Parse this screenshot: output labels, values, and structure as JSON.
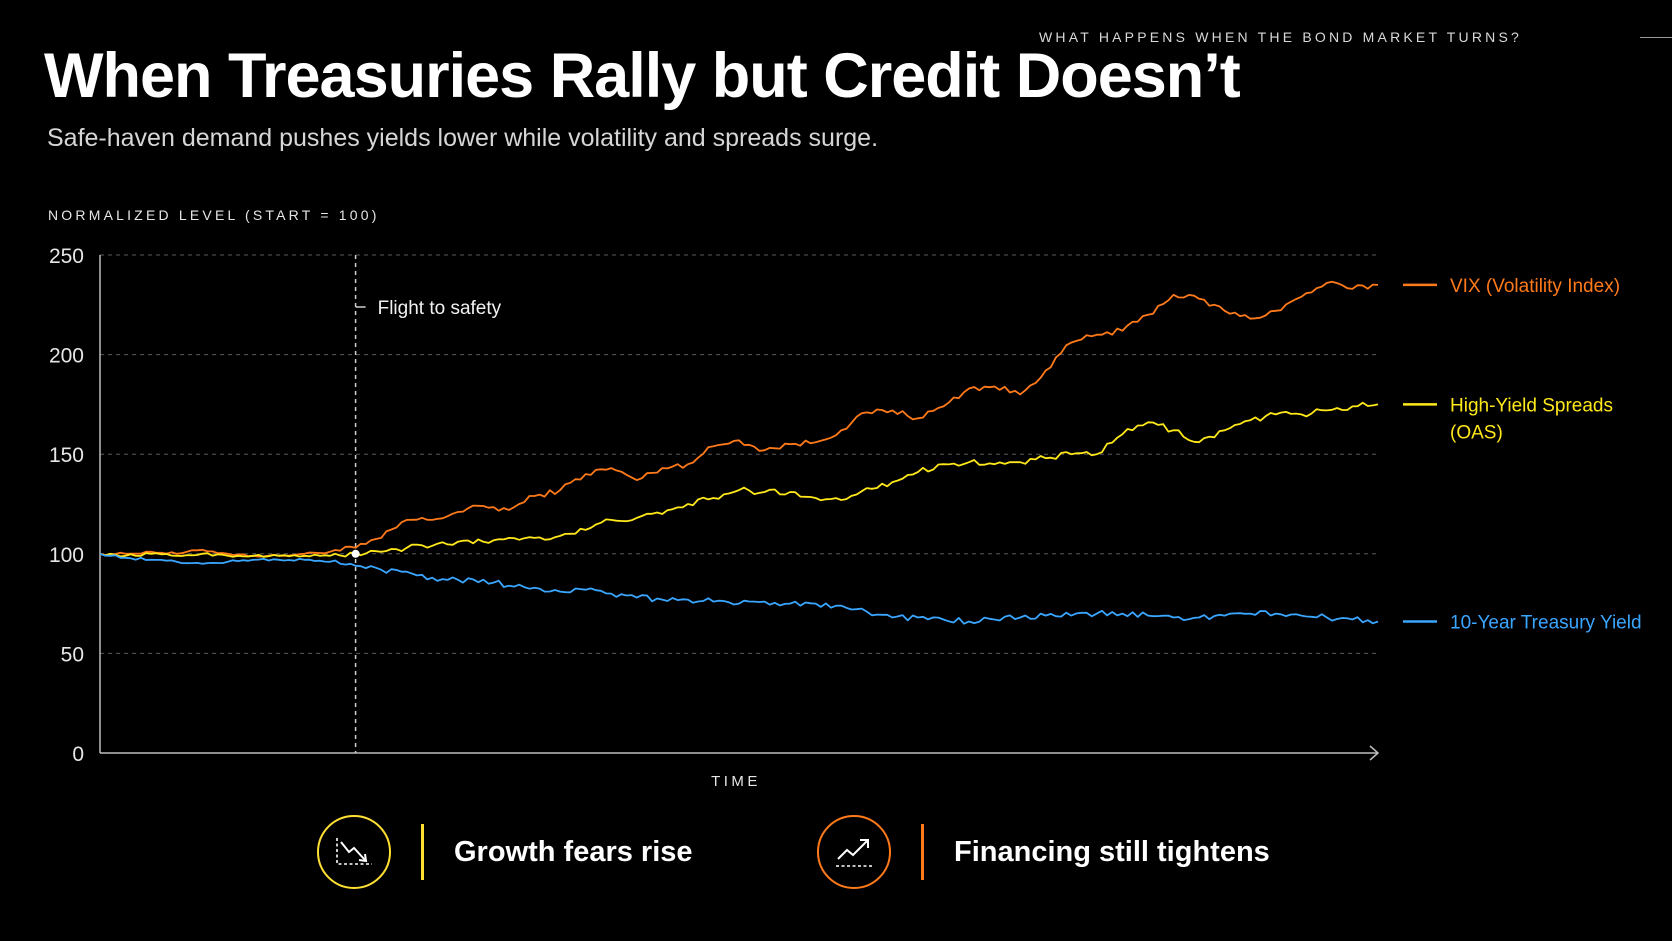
{
  "header": {
    "kicker": "WHAT HAPPENS WHEN THE BOND MARKET TURNS?",
    "title": "When Treasuries Rally but Credit Doesn’t",
    "subtitle": "Safe-haven demand pushes yields lower while volatility and spreads surge."
  },
  "chart_data": {
    "type": "line",
    "title": "When Treasuries Rally but Credit Doesn’t",
    "ylabel": "NORMALIZED LEVEL (START = 100)",
    "xlabel": "TIME",
    "ylim": [
      0,
      250
    ],
    "yticks": [
      0,
      50,
      100,
      150,
      200,
      250
    ],
    "grid": true,
    "legend": "right",
    "annotation": {
      "label": "Flight to safety",
      "x": 20,
      "y": 100
    },
    "x": [
      0,
      2,
      4,
      6,
      8,
      10,
      12,
      14,
      16,
      18,
      20,
      22,
      24,
      26,
      28,
      30,
      32,
      34,
      36,
      38,
      40,
      42,
      44,
      46,
      48,
      50,
      52,
      54,
      56,
      58,
      60,
      62,
      64,
      66,
      68,
      70,
      72,
      74,
      76,
      78,
      80,
      82,
      84,
      86,
      88,
      90,
      92,
      94,
      96,
      98,
      100
    ],
    "series": [
      {
        "name": "VIX (Volatility Index)",
        "color": "#ff7a1a",
        "values": [
          100,
          100,
          101,
          100,
          102,
          100,
          99,
          99,
          100,
          101,
          103,
          108,
          117,
          117,
          121,
          124,
          122,
          129,
          132,
          140,
          143,
          137,
          143,
          145,
          154,
          157,
          152,
          155,
          156,
          162,
          171,
          172,
          168,
          174,
          183,
          184,
          180,
          192,
          206,
          210,
          212,
          220,
          230,
          228,
          222,
          218,
          222,
          229,
          236,
          233,
          235
        ]
      },
      {
        "name": "High-Yield Spreads (OAS)",
        "color": "#ffe81a",
        "values": [
          100,
          99,
          100,
          99,
          100,
          99,
          99,
          99,
          99,
          99,
          100,
          101,
          103,
          104,
          106,
          106,
          108,
          108,
          109,
          112,
          117,
          118,
          120,
          125,
          128,
          132,
          131,
          131,
          128,
          127,
          133,
          136,
          141,
          145,
          146,
          145,
          146,
          148,
          150,
          150,
          160,
          166,
          162,
          156,
          162,
          167,
          170,
          170,
          172,
          174,
          175
        ]
      },
      {
        "name": "10-Year Treasury Yield",
        "color": "#3aa6ff",
        "values": [
          100,
          98,
          97,
          96,
          95,
          96,
          97,
          97,
          97,
          96,
          94,
          92,
          91,
          88,
          87,
          87,
          84,
          83,
          81,
          82,
          80,
          78,
          77,
          77,
          76,
          75,
          76,
          75,
          75,
          74,
          71,
          68,
          68,
          67,
          66,
          67,
          68,
          69,
          69,
          70,
          70,
          69,
          68,
          68,
          69,
          70,
          70,
          69,
          68,
          67,
          66
        ]
      }
    ]
  },
  "legend": [
    {
      "line1": "VIX (Volatility Index)",
      "line2": "",
      "color": "#ff7a1a"
    },
    {
      "line1": "High-Yield Spreads",
      "line2": "(OAS)",
      "color": "#ffe81a"
    },
    {
      "line1": "10-Year Treasury Yield",
      "line2": "",
      "color": "#3aa6ff"
    }
  ],
  "callouts": [
    {
      "label": "Growth fears rise",
      "icon": "trend-down-icon",
      "color": "#ffe033"
    },
    {
      "label": "Financing still tightens",
      "icon": "trend-up-icon",
      "color": "#ff7a1a"
    }
  ]
}
